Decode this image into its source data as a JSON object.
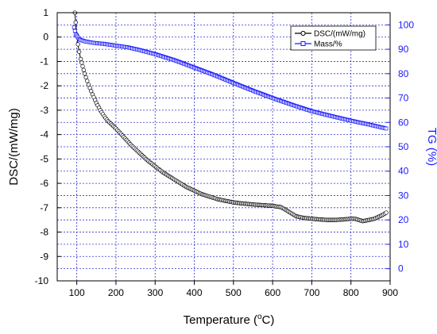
{
  "chart_data": {
    "type": "line",
    "xlabel": "Temperature (",
    "xlabel_unit": "o",
    "xlabel_tail": "C)",
    "y1label": "DSC/(mW/mg)",
    "y2label": "TG (%)",
    "xlim": [
      50,
      900
    ],
    "y1lim": [
      -10,
      1
    ],
    "y2lim": [
      -5,
      105
    ],
    "xticks": [
      100,
      200,
      300,
      400,
      500,
      600,
      700,
      800,
      900
    ],
    "y1ticks": [
      1,
      0,
      -1,
      -2,
      -3,
      -4,
      -5,
      -6,
      -7,
      -8,
      -9,
      -10
    ],
    "y2ticks": [
      100,
      90,
      80,
      70,
      60,
      50,
      40,
      30,
      20,
      10,
      0
    ],
    "grid": true,
    "legend_position": "top-right",
    "colors": {
      "dsc": "#000000",
      "mass": "#1a1aff",
      "right_axis": "#1a1aff",
      "grid": "#3030d0"
    },
    "series": [
      {
        "name": "DSC/(mW/mg)",
        "axis": "left",
        "x": [
          95,
          97,
          100,
          103,
          106,
          110,
          115,
          120,
          130,
          140,
          150,
          160,
          170,
          180,
          190,
          200,
          220,
          240,
          260,
          280,
          300,
          320,
          340,
          360,
          380,
          400,
          420,
          440,
          460,
          480,
          500,
          520,
          540,
          560,
          580,
          600,
          610,
          620,
          630,
          640,
          650,
          660,
          680,
          700,
          720,
          740,
          760,
          780,
          800,
          810,
          820,
          830,
          840,
          860,
          880,
          890
        ],
        "values": [
          1.0,
          0.6,
          0.1,
          -0.3,
          -0.6,
          -0.9,
          -1.2,
          -1.5,
          -1.95,
          -2.35,
          -2.7,
          -3.0,
          -3.25,
          -3.45,
          -3.6,
          -3.75,
          -4.1,
          -4.45,
          -4.75,
          -5.05,
          -5.3,
          -5.55,
          -5.75,
          -5.95,
          -6.15,
          -6.3,
          -6.45,
          -6.55,
          -6.65,
          -6.72,
          -6.78,
          -6.82,
          -6.85,
          -6.88,
          -6.9,
          -6.92,
          -6.95,
          -6.97,
          -7.05,
          -7.15,
          -7.25,
          -7.35,
          -7.42,
          -7.45,
          -7.48,
          -7.5,
          -7.5,
          -7.48,
          -7.45,
          -7.45,
          -7.5,
          -7.55,
          -7.52,
          -7.45,
          -7.3,
          -7.2
        ]
      },
      {
        "name": "Mass/%",
        "axis": "right",
        "x": [
          93,
          95,
          97,
          100,
          105,
          110,
          120,
          130,
          140,
          150,
          170,
          200,
          230,
          260,
          300,
          350,
          400,
          450,
          500,
          550,
          600,
          650,
          700,
          750,
          800,
          850,
          890
        ],
        "values": [
          99,
          97.5,
          96,
          95.5,
          94.5,
          93.8,
          93.3,
          93.0,
          92.7,
          92.5,
          92.2,
          91.5,
          90.8,
          89.7,
          88.0,
          85.5,
          82.5,
          79.5,
          76.2,
          73.0,
          70.0,
          67.2,
          64.6,
          62.6,
          60.7,
          59.0,
          57.5
        ]
      }
    ]
  }
}
